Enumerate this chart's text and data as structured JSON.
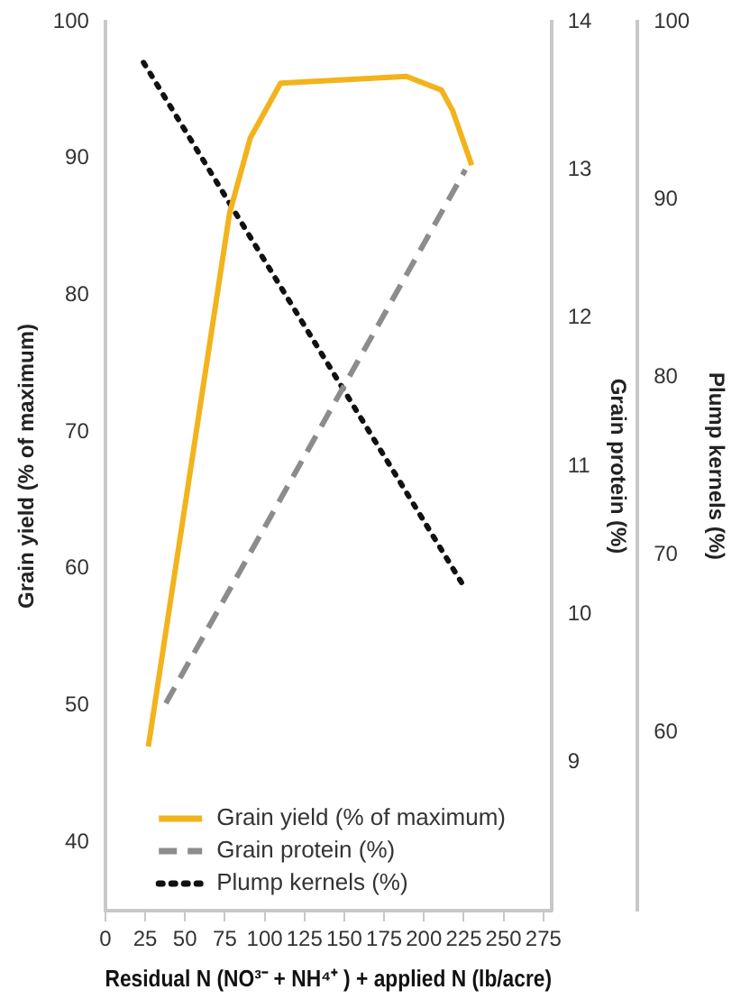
{
  "chart_data": {
    "type": "line",
    "xlabel": "Residual N (NO³⁻ + NH⁴⁺ ) + applied N (lb/acre)",
    "ylabel": "Grain yield (% of maximum)",
    "y2label": "Grain protein (%)",
    "y3label": "Plump kernels (%)",
    "xlim": [
      0,
      280
    ],
    "xticks": [
      0,
      25,
      50,
      75,
      100,
      125,
      150,
      175,
      200,
      225,
      250,
      275
    ],
    "ylim": [
      35,
      100
    ],
    "yticks": [
      40,
      50,
      60,
      70,
      80,
      90,
      100
    ],
    "y2lim": [
      8,
      14
    ],
    "y2ticks": [
      9,
      10,
      11,
      12,
      13,
      14
    ],
    "y3lim": [
      50,
      100
    ],
    "y3ticks": [
      60,
      70,
      80,
      90,
      100
    ],
    "legend": "bottom",
    "marker": "none",
    "grid": false,
    "series": [
      {
        "name": "Grain yield (% of maximum)",
        "color": "#f2b31c",
        "line_style": "solid",
        "axis": "y",
        "x": [
          27,
          78,
          91,
          110,
          189,
          211,
          218,
          230
        ],
        "values": [
          47,
          86,
          91.5,
          95.5,
          96,
          95,
          93.5,
          89.5
        ]
      },
      {
        "name": "Grain protein (%)",
        "color": "#8c8c8c",
        "line_style": "dashed",
        "axis": "y2",
        "x": [
          38,
          226
        ],
        "values": [
          9.4,
          13.0
        ]
      },
      {
        "name": "Plump kernels (%)",
        "color": "#111111",
        "line_style": "dotted",
        "axis": "y3",
        "x": [
          24,
          226
        ],
        "values": [
          97.7,
          68.1
        ]
      }
    ]
  }
}
